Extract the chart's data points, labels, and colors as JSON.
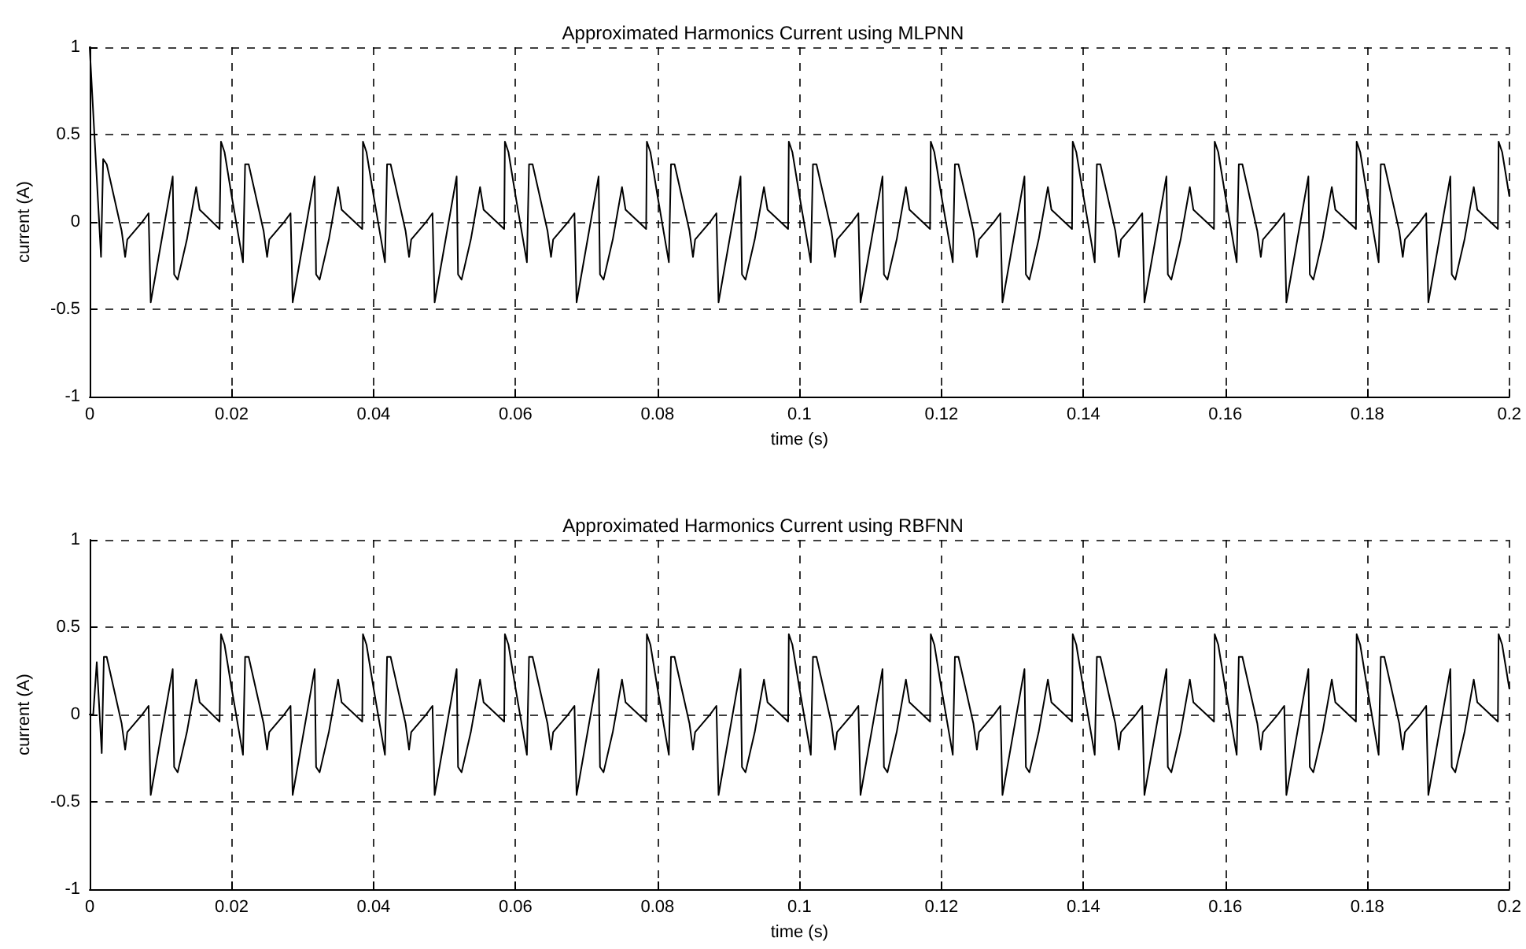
{
  "chart_data": [
    {
      "type": "line",
      "title": "Approximated Harmonics Current using MLPNN",
      "xlabel": "time (s)",
      "ylabel": "current (A)",
      "xlim": [
        0,
        0.2
      ],
      "xticks": [
        0,
        0.02,
        0.04,
        0.06,
        0.08,
        0.1,
        0.12,
        0.14,
        0.16,
        0.18,
        0.2
      ],
      "ylim": [
        -1,
        1
      ],
      "yticks": [
        -1,
        -0.5,
        0,
        0.5,
        1
      ],
      "grid": true,
      "marker": "none",
      "line_style": "solid",
      "series": [
        {
          "color": "#000000",
          "x": [
            0,
            0.0016,
            0.0019,
            0.0024,
            0.0045,
            0.005,
            0.0053,
            0.0074,
            0.0083,
            0.0086,
            0.0117,
            0.0119,
            0.0124,
            0.0137,
            0.015,
            0.0155,
            0.0183,
            0.0184,
            0.0185,
            0.019,
            0.02,
            0.0216,
            0.0219,
            0.0224,
            0.0245,
            0.025,
            0.0253,
            0.0274,
            0.0283,
            0.0286,
            0.0317,
            0.0319,
            0.0324,
            0.0337,
            0.035,
            0.0355,
            0.0384,
            0.0385,
            0.039,
            0.04,
            0.0416,
            0.0419,
            0.0424,
            0.0445,
            0.045,
            0.0453,
            0.0474,
            0.0483,
            0.0486,
            0.0517,
            0.0519,
            0.0524,
            0.0537,
            0.055,
            0.0555,
            0.0584,
            0.0585,
            0.059,
            0.06,
            0.0616,
            0.0619,
            0.0624,
            0.0645,
            0.065,
            0.0653,
            0.0674,
            0.0683,
            0.0686,
            0.0717,
            0.0719,
            0.0724,
            0.0737,
            0.075,
            0.0755,
            0.0784,
            0.0785,
            0.079,
            0.08,
            0.0816,
            0.0819,
            0.0824,
            0.0845,
            0.085,
            0.0853,
            0.0874,
            0.0883,
            0.0886,
            0.0917,
            0.0919,
            0.0924,
            0.0937,
            0.095,
            0.0955,
            0.0984,
            0.0985,
            0.099,
            0.1,
            0.1016,
            0.1019,
            0.1024,
            0.1045,
            0.105,
            0.1053,
            0.1074,
            0.1083,
            0.1086,
            0.1117,
            0.1119,
            0.1124,
            0.1137,
            0.115,
            0.1155,
            0.1184,
            0.1185,
            0.119,
            0.12,
            0.1216,
            0.1219,
            0.1224,
            0.1245,
            0.125,
            0.1253,
            0.1274,
            0.1283,
            0.1286,
            0.1317,
            0.1319,
            0.1324,
            0.1337,
            0.135,
            0.1355,
            0.1384,
            0.1385,
            0.139,
            0.14,
            0.1416,
            0.1419,
            0.1424,
            0.1445,
            0.145,
            0.1453,
            0.1474,
            0.1483,
            0.1486,
            0.1517,
            0.1519,
            0.1524,
            0.1537,
            0.155,
            0.1555,
            0.1584,
            0.1585,
            0.159,
            0.16,
            0.1616,
            0.1619,
            0.1624,
            0.1645,
            0.165,
            0.1653,
            0.1674,
            0.1683,
            0.1686,
            0.1717,
            0.1719,
            0.1724,
            0.1737,
            0.175,
            0.1755,
            0.1784,
            0.1785,
            0.179,
            0.18,
            0.1816,
            0.1819,
            0.1824,
            0.1845,
            0.185,
            0.1853,
            0.1874,
            0.1883,
            0.1886,
            0.1917,
            0.1919,
            0.1924,
            0.1937,
            0.195,
            0.1955,
            0.1984,
            0.1985,
            0.199,
            0.2
          ],
          "values": [
            1,
            -0.2,
            0.36,
            0.33,
            -0.05,
            -0.2,
            -0.1,
            0,
            0.05,
            -0.46,
            0.26,
            -0.3,
            -0.33,
            -0.1,
            0.2,
            0.07,
            -0.04,
            -0.04,
            0.46,
            0.4,
            0.15,
            -0.23,
            0.33,
            0.33,
            -0.05,
            -0.2,
            -0.1,
            0,
            0.05,
            -0.46,
            0.26,
            -0.3,
            -0.33,
            -0.1,
            0.2,
            0.07,
            -0.04,
            0.46,
            0.4,
            0.15,
            -0.23,
            0.33,
            0.33,
            -0.05,
            -0.2,
            -0.1,
            0,
            0.05,
            -0.46,
            0.26,
            -0.3,
            -0.33,
            -0.1,
            0.2,
            0.07,
            -0.04,
            0.46,
            0.4,
            0.15,
            -0.23,
            0.33,
            0.33,
            -0.05,
            -0.2,
            -0.1,
            0,
            0.05,
            -0.46,
            0.26,
            -0.3,
            -0.33,
            -0.1,
            0.2,
            0.07,
            -0.04,
            0.46,
            0.4,
            0.15,
            -0.23,
            0.33,
            0.33,
            -0.05,
            -0.2,
            -0.1,
            0,
            0.05,
            -0.46,
            0.26,
            -0.3,
            -0.33,
            -0.1,
            0.2,
            0.07,
            -0.04,
            0.46,
            0.4,
            0.15,
            -0.23,
            0.33,
            0.33,
            -0.05,
            -0.2,
            -0.1,
            0,
            0.05,
            -0.46,
            0.26,
            -0.3,
            -0.33,
            -0.1,
            0.2,
            0.07,
            -0.04,
            0.46,
            0.4,
            0.15,
            -0.23,
            0.33,
            0.33,
            -0.05,
            -0.2,
            -0.1,
            0,
            0.05,
            -0.46,
            0.26,
            -0.3,
            -0.33,
            -0.1,
            0.2,
            0.07,
            -0.04,
            0.46,
            0.4,
            0.15,
            -0.23,
            0.33,
            0.33,
            -0.05,
            -0.2,
            -0.1,
            0,
            0.05,
            -0.46,
            0.26,
            -0.3,
            -0.33,
            -0.1,
            0.2,
            0.07,
            -0.04,
            0.46,
            0.4,
            0.15,
            -0.23,
            0.33,
            0.33,
            -0.05,
            -0.2,
            -0.1,
            0,
            0.05,
            -0.46,
            0.26,
            -0.3,
            -0.33,
            -0.1,
            0.2,
            0.07,
            -0.04,
            0.46,
            0.4,
            0.15,
            -0.23,
            0.33,
            0.33,
            -0.05,
            -0.2,
            -0.1,
            0,
            0.05,
            -0.46,
            0.26,
            -0.3,
            -0.33,
            -0.1,
            0.2,
            0.07,
            -0.04,
            0.46,
            0.4,
            0.15
          ]
        }
      ]
    },
    {
      "type": "line",
      "title": "Approximated Harmonics Current using RBFNN",
      "xlabel": "time (s)",
      "ylabel": "current (A)",
      "xlim": [
        0,
        0.2
      ],
      "xticks": [
        0,
        0.02,
        0.04,
        0.06,
        0.08,
        0.1,
        0.12,
        0.14,
        0.16,
        0.18,
        0.2
      ],
      "ylim": [
        -1,
        1
      ],
      "yticks": [
        -1,
        -0.5,
        0,
        0.5,
        1
      ],
      "grid": true,
      "marker": "none",
      "line_style": "solid",
      "series": [
        {
          "color": "#000000",
          "x": [
            0,
            0.0005,
            0.001,
            0.0017,
            0.002,
            0.0024,
            0.0045,
            0.005,
            0.0053,
            0.0074,
            0.0083,
            0.0086,
            0.0117,
            0.0119,
            0.0124,
            0.0137,
            0.015,
            0.0155,
            0.0183,
            0.0184,
            0.0185,
            0.019,
            0.02,
            0.0216,
            0.0219,
            0.0224,
            0.0245,
            0.025,
            0.0253,
            0.0274,
            0.0283,
            0.0286,
            0.0317,
            0.0319,
            0.0324,
            0.0337,
            0.035,
            0.0355,
            0.0384,
            0.0385,
            0.039,
            0.04,
            0.0416,
            0.0419,
            0.0424,
            0.0445,
            0.045,
            0.0453,
            0.0474,
            0.0483,
            0.0486,
            0.0517,
            0.0519,
            0.0524,
            0.0537,
            0.055,
            0.0555,
            0.0584,
            0.0585,
            0.059,
            0.06,
            0.0616,
            0.0619,
            0.0624,
            0.0645,
            0.065,
            0.0653,
            0.0674,
            0.0683,
            0.0686,
            0.0717,
            0.0719,
            0.0724,
            0.0737,
            0.075,
            0.0755,
            0.0784,
            0.0785,
            0.079,
            0.08,
            0.0816,
            0.0819,
            0.0824,
            0.0845,
            0.085,
            0.0853,
            0.0874,
            0.0883,
            0.0886,
            0.0917,
            0.0919,
            0.0924,
            0.0937,
            0.095,
            0.0955,
            0.0984,
            0.0985,
            0.099,
            0.1,
            0.1016,
            0.1019,
            0.1024,
            0.1045,
            0.105,
            0.1053,
            0.1074,
            0.1083,
            0.1086,
            0.1117,
            0.1119,
            0.1124,
            0.1137,
            0.115,
            0.1155,
            0.1184,
            0.1185,
            0.119,
            0.12,
            0.1216,
            0.1219,
            0.1224,
            0.1245,
            0.125,
            0.1253,
            0.1274,
            0.1283,
            0.1286,
            0.1317,
            0.1319,
            0.1324,
            0.1337,
            0.135,
            0.1355,
            0.1384,
            0.1385,
            0.139,
            0.14,
            0.1416,
            0.1419,
            0.1424,
            0.1445,
            0.145,
            0.1453,
            0.1474,
            0.1483,
            0.1486,
            0.1517,
            0.1519,
            0.1524,
            0.1537,
            0.155,
            0.1555,
            0.1584,
            0.1585,
            0.159,
            0.16,
            0.1616,
            0.1619,
            0.1624,
            0.1645,
            0.165,
            0.1653,
            0.1674,
            0.1683,
            0.1686,
            0.1717,
            0.1719,
            0.1724,
            0.1737,
            0.175,
            0.1755,
            0.1784,
            0.1785,
            0.179,
            0.18,
            0.1816,
            0.1819,
            0.1824,
            0.1845,
            0.185,
            0.1853,
            0.1874,
            0.1883,
            0.1886,
            0.1917,
            0.1919,
            0.1924,
            0.1937,
            0.195,
            0.1955,
            0.1984,
            0.1985,
            0.199,
            0.2
          ],
          "values": [
            0,
            0,
            0.3,
            -0.22,
            0.33,
            0.33,
            -0.05,
            -0.2,
            -0.1,
            0,
            0.05,
            -0.46,
            0.26,
            -0.3,
            -0.33,
            -0.1,
            0.2,
            0.07,
            -0.04,
            -0.04,
            0.46,
            0.4,
            0.15,
            -0.23,
            0.33,
            0.33,
            -0.05,
            -0.2,
            -0.1,
            0,
            0.05,
            -0.46,
            0.26,
            -0.3,
            -0.33,
            -0.1,
            0.2,
            0.07,
            -0.04,
            0.46,
            0.4,
            0.15,
            -0.23,
            0.33,
            0.33,
            -0.05,
            -0.2,
            -0.1,
            0,
            0.05,
            -0.46,
            0.26,
            -0.3,
            -0.33,
            -0.1,
            0.2,
            0.07,
            -0.04,
            0.46,
            0.4,
            0.15,
            -0.23,
            0.33,
            0.33,
            -0.05,
            -0.2,
            -0.1,
            0,
            0.05,
            -0.46,
            0.26,
            -0.3,
            -0.33,
            -0.1,
            0.2,
            0.07,
            -0.04,
            0.46,
            0.4,
            0.15,
            -0.23,
            0.33,
            0.33,
            -0.05,
            -0.2,
            -0.1,
            0,
            0.05,
            -0.46,
            0.26,
            -0.3,
            -0.33,
            -0.1,
            0.2,
            0.07,
            -0.04,
            0.46,
            0.4,
            0.15,
            -0.23,
            0.33,
            0.33,
            -0.05,
            -0.2,
            -0.1,
            0,
            0.05,
            -0.46,
            0.26,
            -0.3,
            -0.33,
            -0.1,
            0.2,
            0.07,
            -0.04,
            0.46,
            0.4,
            0.15,
            -0.23,
            0.33,
            0.33,
            -0.05,
            -0.2,
            -0.1,
            0,
            0.05,
            -0.46,
            0.26,
            -0.3,
            -0.33,
            -0.1,
            0.2,
            0.07,
            -0.04,
            0.46,
            0.4,
            0.15,
            -0.23,
            0.33,
            0.33,
            -0.05,
            -0.2,
            -0.1,
            0,
            0.05,
            -0.46,
            0.26,
            -0.3,
            -0.33,
            -0.1,
            0.2,
            0.07,
            -0.04,
            0.46,
            0.4,
            0.15,
            -0.23,
            0.33,
            0.33,
            -0.05,
            -0.2,
            -0.1,
            0,
            0.05,
            -0.46,
            0.26,
            -0.3,
            -0.33,
            -0.1,
            0.2,
            0.07,
            -0.04,
            0.46,
            0.4,
            0.15,
            -0.23,
            0.33,
            0.33,
            -0.05,
            -0.2,
            -0.1,
            0,
            0.05,
            -0.46,
            0.26,
            -0.3,
            -0.33,
            -0.1,
            0.2,
            0.07,
            -0.04,
            0.46,
            0.4,
            0.15
          ]
        }
      ]
    }
  ]
}
